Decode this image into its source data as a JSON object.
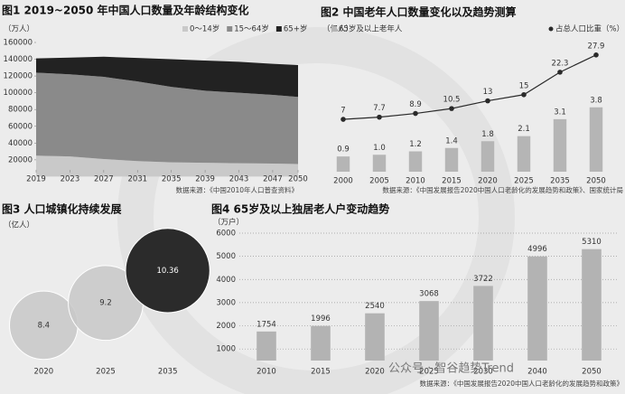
{
  "chart_data": [
    {
      "type": "area",
      "title": "图1 2019~2050 年中国人口数量及年龄结构变化",
      "y_label": "（万人）",
      "source": "数据来源：《中国2010年人口普查资料》",
      "x": [
        2019,
        2023,
        2027,
        2031,
        2035,
        2039,
        2043,
        2047,
        2050
      ],
      "xlim": [
        2019,
        2050
      ],
      "xticks": [
        2019,
        2023,
        2027,
        2031,
        2035,
        2039,
        2043,
        2047,
        2050
      ],
      "ylim": [
        8000,
        160000
      ],
      "yticks": [
        20000,
        40000,
        60000,
        80000,
        100000,
        120000,
        140000,
        160000
      ],
      "series": [
        {
          "name": "0～14岁",
          "color": "#c9c9c9",
          "values": [
            25000,
            24000,
            21000,
            18500,
            17000,
            16500,
            16000,
            15500,
            15000
          ]
        },
        {
          "name": "15～64岁",
          "color": "#8a8a8a",
          "values": [
            99000,
            98000,
            98000,
            95000,
            90000,
            86000,
            84000,
            82000,
            80000
          ]
        },
        {
          "name": "65+岁",
          "color": "#222222",
          "values": [
            17000,
            20000,
            24000,
            28000,
            33000,
            36000,
            37000,
            37000,
            38000
          ]
        }
      ]
    },
    {
      "type": "bar",
      "title": "图2 中国老年人口数量变化以及趋势测算",
      "y_label": "（亿人）",
      "source": "数据来源：《中国发展报告2020中国人口老龄化的发展趋势和政策》、国家统计局",
      "categories": [
        "2000",
        "2005",
        "2010",
        "2015",
        "2020",
        "2025",
        "2035",
        "2050"
      ],
      "ylim": [
        0,
        8
      ],
      "y2lim": [
        -10,
        34
      ],
      "series": [
        {
          "name": "65岁及以上老年人",
          "type": "bar",
          "color": "#b5b5b5",
          "values": [
            0.9,
            1.0,
            1.2,
            1.4,
            1.8,
            2.1,
            3.1,
            3.8
          ],
          "value_labels": [
            "0.9",
            "1.0",
            "1.2",
            "1.4",
            "1.8",
            "2.1",
            "3.1",
            "3.8"
          ]
        },
        {
          "name": "占总人口比重（%）",
          "type": "line",
          "axis": "y2",
          "color": "#2a2a2a",
          "values": [
            7,
            7.7,
            8.9,
            10.5,
            13,
            15,
            22.3,
            27.9
          ]
        }
      ]
    },
    {
      "type": "bubble",
      "title": "图3 人口城镇化持续发展",
      "y_label": "（亿人）",
      "categories": [
        "2020",
        "2025",
        "2035"
      ],
      "values": [
        8.4,
        9.2,
        10.36
      ],
      "ylim": [
        7.1,
        11.8
      ],
      "colors": [
        "#c8c8c8",
        "#c8c8c8",
        "#2b2b2b"
      ]
    },
    {
      "type": "bar",
      "title": "图4 65岁及以上独居老人户变动趋势",
      "y_label": "（万户）",
      "source": "数据来源：《中国发展报告2020中国人口老龄化的发展趋势和政策》",
      "watermark": "公众号 · 智谷趋势Trend",
      "categories": [
        "2010",
        "2015",
        "2020",
        "2025",
        "2030",
        "2040",
        "2050"
      ],
      "values": [
        1754,
        1996,
        2540,
        3068,
        3722,
        4996,
        5310
      ],
      "color": "#b3b3b3",
      "ylim": [
        500,
        6000
      ],
      "yticks": [
        1000,
        2000,
        3000,
        4000,
        5000,
        6000
      ],
      "grid": true
    }
  ]
}
